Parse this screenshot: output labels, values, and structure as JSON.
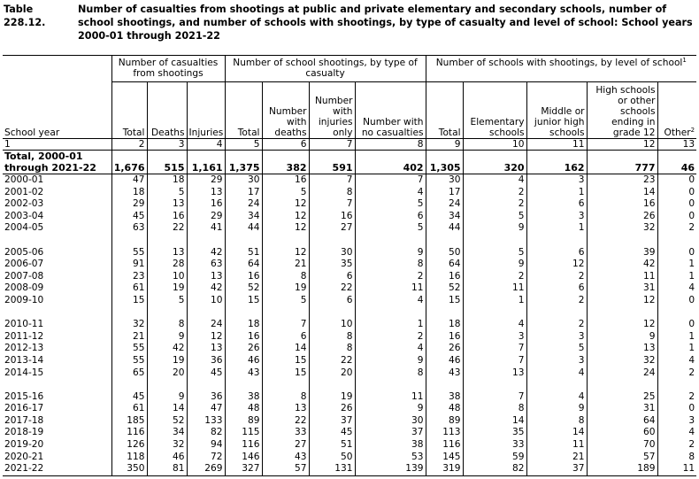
{
  "header": {
    "number": "Table 228.12.",
    "title": "Number of casualties from shootings at public and private elementary and secondary schools, number of school shootings, and number of schools with shootings, by type of casualty and level of school: School years 2000-01 through 2021-22"
  },
  "table": {
    "stub": "School year",
    "groups": [
      {
        "label": "Number of casualties from shootings"
      },
      {
        "label": "Number of school shootings, by type of casualty"
      },
      {
        "label": "Number of schools with shootings, by level of school",
        "note": "1"
      }
    ],
    "columns": [
      {
        "label": "Total"
      },
      {
        "label": "Deaths"
      },
      {
        "label": "Injuries"
      },
      {
        "label": "Total"
      },
      {
        "label": "Number with deaths"
      },
      {
        "label": "Number with injuries only"
      },
      {
        "label": "Number with no casualties"
      },
      {
        "label": "Total"
      },
      {
        "label": "Elementary schools"
      },
      {
        "label": "Middle or junior high schools"
      },
      {
        "label": "High schools or other schools ending in grade 12"
      },
      {
        "label": "Other",
        "note": "2"
      }
    ],
    "column_numbers": [
      "1",
      "2",
      "3",
      "4",
      "5",
      "6",
      "7",
      "8",
      "9",
      "10",
      "11",
      "12",
      "13"
    ],
    "total": [
      "Total, 2000-01 through 2021-22",
      "1,676",
      "515",
      "1,161",
      "1,375",
      "382",
      "591",
      "402",
      "1,305",
      "320",
      "162",
      "777",
      "46"
    ],
    "row_groups": [
      [
        [
          "2000-01",
          "47",
          "18",
          "29",
          "30",
          "16",
          "7",
          "7",
          "30",
          "4",
          "3",
          "23",
          "0"
        ],
        [
          "2001-02",
          "18",
          "5",
          "13",
          "17",
          "5",
          "8",
          "4",
          "17",
          "2",
          "1",
          "14",
          "0"
        ],
        [
          "2002-03",
          "29",
          "13",
          "16",
          "24",
          "12",
          "7",
          "5",
          "24",
          "2",
          "6",
          "16",
          "0"
        ],
        [
          "2003-04",
          "45",
          "16",
          "29",
          "34",
          "12",
          "16",
          "6",
          "34",
          "5",
          "3",
          "26",
          "0"
        ],
        [
          "2004-05",
          "63",
          "22",
          "41",
          "44",
          "12",
          "27",
          "5",
          "44",
          "9",
          "1",
          "32",
          "2"
        ]
      ],
      [
        [
          "2005-06",
          "55",
          "13",
          "42",
          "51",
          "12",
          "30",
          "9",
          "50",
          "5",
          "6",
          "39",
          "0"
        ],
        [
          "2006-07",
          "91",
          "28",
          "63",
          "64",
          "21",
          "35",
          "8",
          "64",
          "9",
          "12",
          "42",
          "1"
        ],
        [
          "2007-08",
          "23",
          "10",
          "13",
          "16",
          "8",
          "6",
          "2",
          "16",
          "2",
          "2",
          "11",
          "1"
        ],
        [
          "2008-09",
          "61",
          "19",
          "42",
          "52",
          "19",
          "22",
          "11",
          "52",
          "11",
          "6",
          "31",
          "4"
        ],
        [
          "2009-10",
          "15",
          "5",
          "10",
          "15",
          "5",
          "6",
          "4",
          "15",
          "1",
          "2",
          "12",
          "0"
        ]
      ],
      [
        [
          "2010-11",
          "32",
          "8",
          "24",
          "18",
          "7",
          "10",
          "1",
          "18",
          "4",
          "2",
          "12",
          "0"
        ],
        [
          "2011-12",
          "21",
          "9",
          "12",
          "16",
          "6",
          "8",
          "2",
          "16",
          "3",
          "3",
          "9",
          "1"
        ],
        [
          "2012-13",
          "55",
          "42",
          "13",
          "26",
          "14",
          "8",
          "4",
          "26",
          "7",
          "5",
          "13",
          "1"
        ],
        [
          "2013-14",
          "55",
          "19",
          "36",
          "46",
          "15",
          "22",
          "9",
          "46",
          "7",
          "3",
          "32",
          "4"
        ],
        [
          "2014-15",
          "65",
          "20",
          "45",
          "43",
          "15",
          "20",
          "8",
          "43",
          "13",
          "4",
          "24",
          "2"
        ]
      ],
      [
        [
          "2015-16",
          "45",
          "9",
          "36",
          "38",
          "8",
          "19",
          "11",
          "38",
          "7",
          "4",
          "25",
          "2"
        ],
        [
          "2016-17",
          "61",
          "14",
          "47",
          "48",
          "13",
          "26",
          "9",
          "48",
          "8",
          "9",
          "31",
          "0"
        ],
        [
          "2017-18",
          "185",
          "52",
          "133",
          "89",
          "22",
          "37",
          "30",
          "89",
          "14",
          "8",
          "64",
          "3"
        ],
        [
          "2018-19",
          "116",
          "34",
          "82",
          "115",
          "33",
          "45",
          "37",
          "113",
          "35",
          "14",
          "60",
          "4"
        ],
        [
          "2019-20",
          "126",
          "32",
          "94",
          "116",
          "27",
          "51",
          "38",
          "116",
          "33",
          "11",
          "70",
          "2"
        ],
        [
          "2020-21",
          "118",
          "46",
          "72",
          "146",
          "43",
          "50",
          "53",
          "145",
          "59",
          "21",
          "57",
          "8"
        ],
        [
          "2021-22",
          "350",
          "81",
          "269",
          "327",
          "57",
          "131",
          "139",
          "319",
          "82",
          "37",
          "189",
          "11"
        ]
      ]
    ]
  }
}
